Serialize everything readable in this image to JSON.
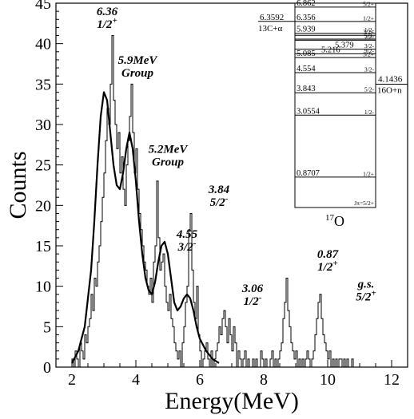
{
  "chart_data": {
    "type": "histogram",
    "xlabel": "Energy(MeV)",
    "ylabel": "Counts",
    "xlim": [
      1.5,
      12.5
    ],
    "ylim": [
      0,
      45
    ],
    "xticks": [
      2,
      4,
      6,
      8,
      10,
      12
    ],
    "yticks": [
      0,
      5,
      10,
      15,
      20,
      25,
      30,
      35,
      40,
      45
    ],
    "bin_width": 0.05,
    "bin_start": 1.9,
    "histogram_counts": [
      0,
      0,
      1,
      0,
      2,
      1,
      0,
      3,
      2,
      1,
      4,
      3,
      5,
      6,
      9,
      7,
      11,
      10,
      13,
      15,
      18,
      21,
      24,
      28,
      32,
      30,
      35,
      41,
      33,
      30,
      27,
      29,
      24,
      26,
      22,
      20,
      25,
      28,
      31,
      35,
      29,
      24,
      27,
      22,
      19,
      17,
      15,
      13,
      12,
      10,
      9,
      11,
      8,
      13,
      15,
      23,
      16,
      12,
      13,
      14,
      10,
      8,
      7,
      9,
      6,
      5,
      3,
      2,
      1,
      2,
      0,
      3,
      5,
      8,
      10,
      17,
      19,
      12,
      8,
      6,
      10,
      4,
      2,
      0,
      1,
      2,
      3,
      1,
      0,
      2,
      0,
      1,
      2,
      3,
      5,
      4,
      6,
      7,
      5,
      3,
      6,
      4,
      2,
      5,
      3,
      0,
      2,
      1,
      0,
      1,
      2,
      0,
      1,
      0,
      0,
      1,
      0,
      1,
      0,
      0,
      2,
      1,
      0,
      1,
      0,
      0,
      1,
      2,
      0,
      1,
      0,
      1,
      2,
      3,
      6,
      8,
      11,
      7,
      5,
      3,
      2,
      1,
      2,
      0,
      1,
      0,
      1,
      0,
      1,
      2,
      1,
      0,
      1,
      2,
      4,
      6,
      8,
      9,
      6,
      4,
      3,
      2,
      1,
      2,
      0,
      1,
      0,
      1,
      0,
      1,
      1,
      0,
      1,
      0,
      1,
      0,
      0,
      1,
      0,
      0,
      0
    ],
    "fit_curve": {
      "x": [
        2.0,
        2.2,
        2.4,
        2.6,
        2.7,
        2.8,
        2.9,
        3.0,
        3.1,
        3.2,
        3.3,
        3.4,
        3.5,
        3.6,
        3.7,
        3.8,
        3.9,
        4.0,
        4.1,
        4.2,
        4.3,
        4.4,
        4.5,
        4.6,
        4.7,
        4.8,
        4.9,
        5.0,
        5.1,
        5.2,
        5.3,
        5.4,
        5.5,
        5.6,
        5.7,
        5.8,
        5.9,
        6.0,
        6.2,
        6.4,
        6.6
      ],
      "y": [
        0.5,
        2,
        5,
        12,
        18,
        25,
        31,
        34,
        33,
        29,
        25,
        22.5,
        22,
        24,
        27,
        29,
        27,
        23,
        18,
        14,
        11,
        9.5,
        9,
        10.5,
        13,
        15,
        15.5,
        14,
        11,
        8,
        7,
        7.5,
        8.5,
        9,
        8.5,
        7,
        5,
        3.5,
        2,
        1,
        0.5
      ]
    },
    "annotations": [
      {
        "line1": "6.36",
        "line2": "1/2",
        "sup": "+",
        "x": 3.1,
        "y": 43.5
      },
      {
        "line1": "5.9MeV",
        "line2": "Group",
        "sup": "",
        "x": 4.05,
        "y": 37.5
      },
      {
        "line1": "5.2MeV",
        "line2": "Group",
        "sup": "",
        "x": 5.0,
        "y": 26.5
      },
      {
        "line1": "4.55",
        "line2": "3/2",
        "sup": "-",
        "x": 5.6,
        "y": 16.0
      },
      {
        "line1": "3.84",
        "line2": "5/2",
        "sup": "-",
        "x": 6.6,
        "y": 21.5
      },
      {
        "line1": "3.06",
        "line2": "1/2",
        "sup": "-",
        "x": 7.65,
        "y": 9.3
      },
      {
        "line1": "0.87",
        "line2": "1/2",
        "sup": "+",
        "x": 10.0,
        "y": 13.5
      },
      {
        "line1": "g.s.",
        "line2": "5/2",
        "sup": "+",
        "x": 11.2,
        "y": 9.8
      }
    ],
    "level_scheme": {
      "nucleus_mass": "17",
      "nucleus": "O",
      "jpi_label": "Jπ=5/2+",
      "levels": [
        {
          "energy": 6.862,
          "label": "6.862",
          "jp": "5/2+"
        },
        {
          "energy": 6.356,
          "label": "6.356",
          "jp": "1/2+"
        },
        {
          "energy": 5.939,
          "label": "5.939",
          "jp": "1/2-"
        },
        {
          "energy": 5.869,
          "label": "",
          "jp": "3/2+"
        },
        {
          "energy": 5.733,
          "label": "",
          "jp": "5/2-"
        },
        {
          "energy": 5.697,
          "label": "",
          "jp": "7/2-"
        },
        {
          "energy": 5.379,
          "label": "5.379",
          "jp": "3/2-"
        },
        {
          "energy": 5.216,
          "label": "5.216",
          "jp": "9/2-"
        },
        {
          "energy": 5.085,
          "label": "5.085",
          "jp": "3/2+"
        },
        {
          "energy": 4.554,
          "label": "4.554",
          "jp": "3/2-"
        },
        {
          "energy": 3.843,
          "label": "3.843",
          "jp": "5/2-"
        },
        {
          "energy": 3.0554,
          "label": "3.0554",
          "jp": "1/2-"
        },
        {
          "energy": 0.8707,
          "label": "0.8707",
          "jp": "1/2+"
        }
      ],
      "thresholds": [
        {
          "energy": 6.3592,
          "label": "6.3592",
          "channel": "13C+α"
        },
        {
          "energy": 4.1436,
          "label": "4.1436",
          "channel": "16O+n"
        }
      ]
    }
  }
}
